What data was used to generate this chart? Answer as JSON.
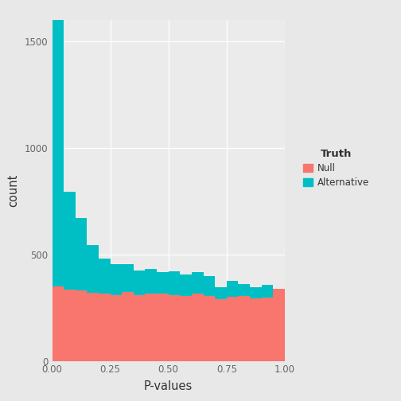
{
  "xlabel": "P-values",
  "ylabel": "count",
  "legend_title": "Truth",
  "null_color": "#F8766D",
  "alt_color": "#00BFC4",
  "background_color": "#E8E8E8",
  "panel_background": "#EBEBEB",
  "grid_color": "#FFFFFF",
  "bin_edges": [
    0.0,
    0.05,
    0.1,
    0.15,
    0.2,
    0.25,
    0.3,
    0.35,
    0.4,
    0.45,
    0.5,
    0.55,
    0.6,
    0.65,
    0.7,
    0.75,
    0.8,
    0.85,
    0.9,
    0.95,
    1.0
  ],
  "null_counts": [
    350,
    335,
    330,
    320,
    315,
    310,
    325,
    310,
    315,
    315,
    310,
    305,
    315,
    305,
    290,
    300,
    305,
    292,
    298,
    340
  ],
  "alt_counts": [
    1260,
    460,
    340,
    225,
    165,
    145,
    130,
    115,
    115,
    100,
    110,
    100,
    100,
    92,
    55,
    75,
    55,
    52,
    58,
    0
  ],
  "ylim": [
    0,
    1600
  ],
  "yticks": [
    0,
    500,
    1000,
    1500
  ],
  "xticks": [
    0.0,
    0.25,
    0.5,
    0.75,
    1.0
  ],
  "xtick_labels": [
    "0.00",
    "0.25",
    "0.50",
    "0.75",
    "1.00"
  ],
  "ytick_labels": [
    "0",
    "500",
    "1000",
    "1500"
  ]
}
